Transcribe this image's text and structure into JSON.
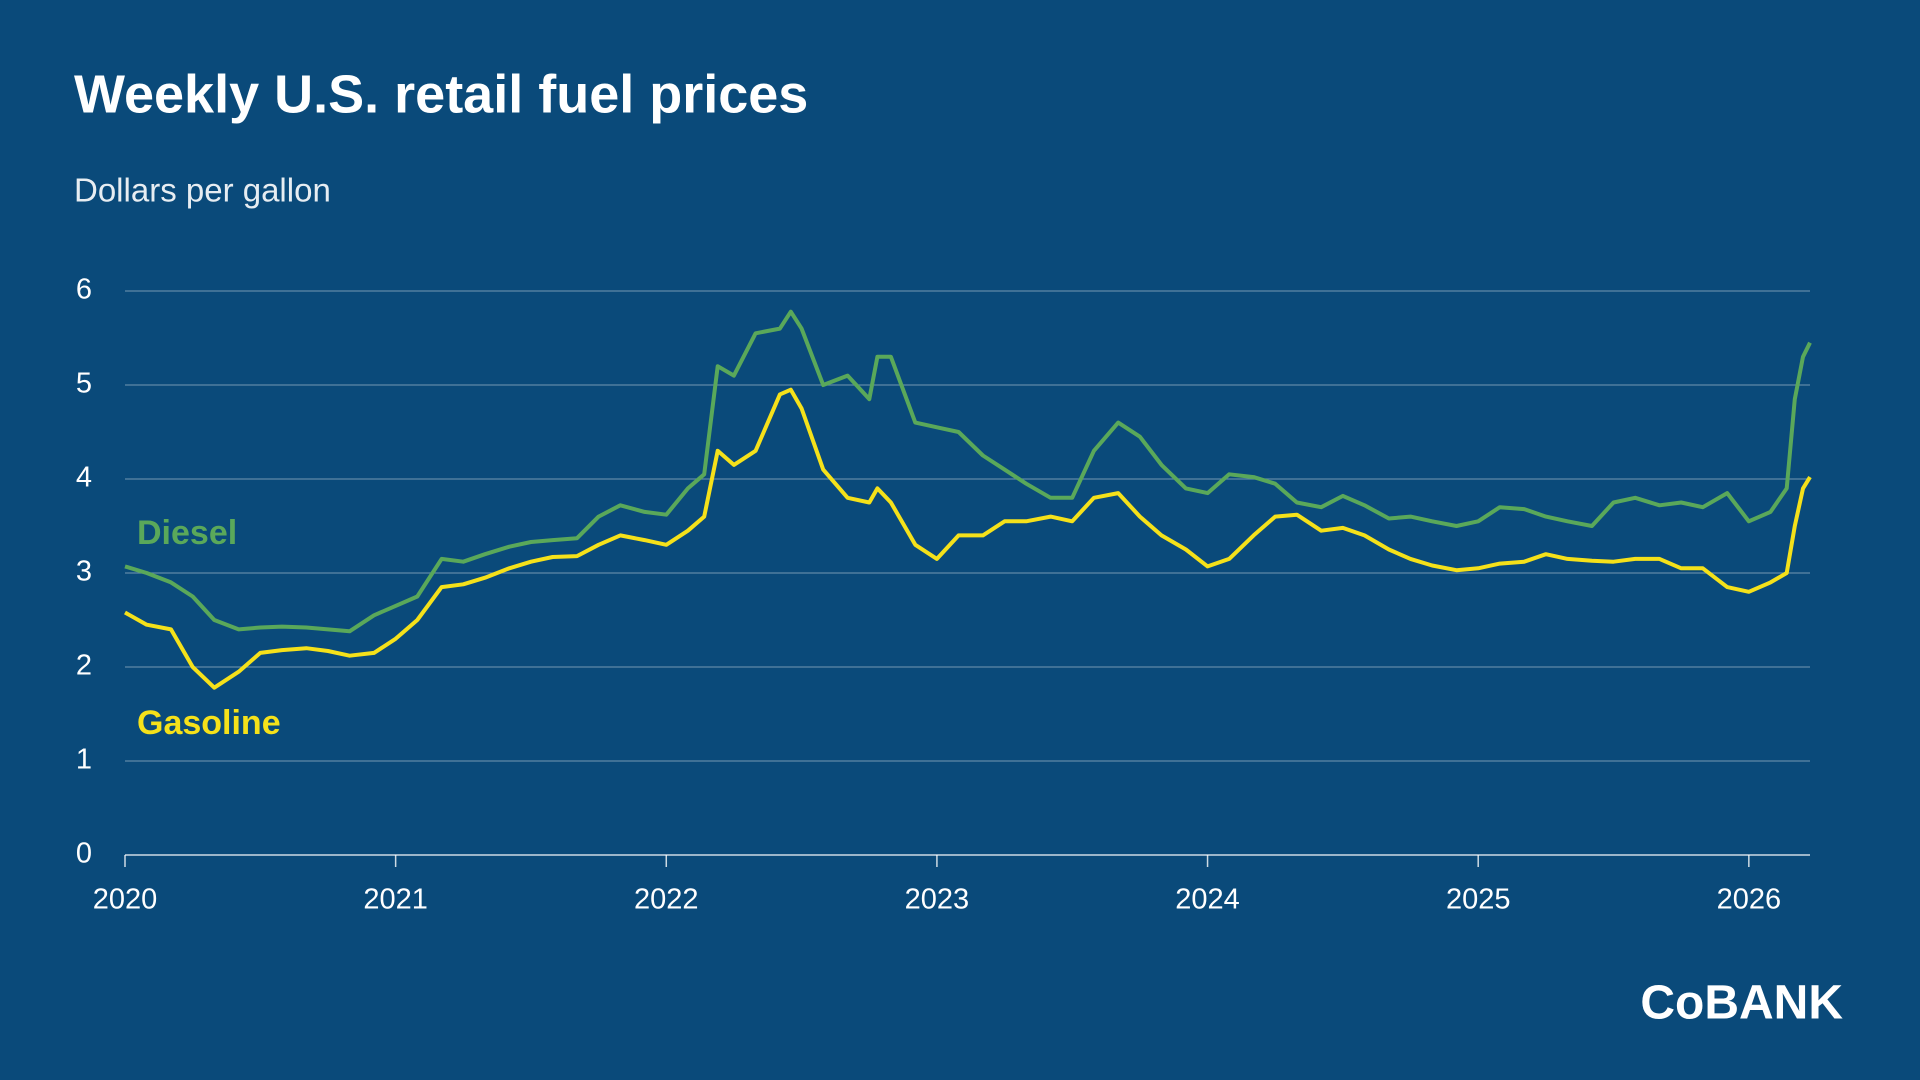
{
  "chart_data": {
    "type": "line",
    "title": "Weekly U.S. retail fuel prices",
    "subtitle": "Dollars per gallon",
    "x": [
      2020,
      2020.08,
      2020.17,
      2020.25,
      2020.33,
      2020.42,
      2020.5,
      2020.58,
      2020.67,
      2020.75,
      2020.83,
      2020.92,
      2021,
      2021.08,
      2021.17,
      2021.25,
      2021.33,
      2021.42,
      2021.5,
      2021.58,
      2021.67,
      2021.75,
      2021.83,
      2021.92,
      2022,
      2022.08,
      2022.14,
      2022.19,
      2022.25,
      2022.33,
      2022.42,
      2022.46,
      2022.5,
      2022.58,
      2022.67,
      2022.75,
      2022.78,
      2022.83,
      2022.92,
      2023,
      2023.08,
      2023.17,
      2023.25,
      2023.33,
      2023.42,
      2023.5,
      2023.58,
      2023.67,
      2023.75,
      2023.83,
      2023.92,
      2024,
      2024.08,
      2024.17,
      2024.25,
      2024.33,
      2024.42,
      2024.5,
      2024.58,
      2024.67,
      2024.75,
      2024.83,
      2024.92,
      2025,
      2025.08,
      2025.17,
      2025.25,
      2025.33,
      2025.42,
      2025.5,
      2025.58,
      2025.67,
      2025.75,
      2025.83,
      2025.92,
      2026,
      2026.08,
      2026.14,
      2026.17,
      2026.2,
      2026.226
    ],
    "series": [
      {
        "name": "Diesel",
        "color": "#5aa85a",
        "values": [
          3.07,
          3.0,
          2.9,
          2.75,
          2.5,
          2.4,
          2.42,
          2.43,
          2.42,
          2.4,
          2.38,
          2.55,
          2.65,
          2.75,
          3.15,
          3.12,
          3.2,
          3.28,
          3.33,
          3.35,
          3.37,
          3.6,
          3.72,
          3.65,
          3.62,
          3.9,
          4.05,
          5.2,
          5.1,
          5.55,
          5.6,
          5.78,
          5.6,
          5.0,
          5.1,
          4.85,
          5.3,
          5.3,
          4.6,
          4.55,
          4.5,
          4.25,
          4.1,
          3.95,
          3.8,
          3.8,
          4.3,
          4.6,
          4.45,
          4.15,
          3.9,
          3.85,
          4.05,
          4.02,
          3.95,
          3.75,
          3.7,
          3.82,
          3.72,
          3.58,
          3.6,
          3.55,
          3.5,
          3.55,
          3.7,
          3.68,
          3.6,
          3.55,
          3.5,
          3.75,
          3.8,
          3.72,
          3.75,
          3.7,
          3.85,
          3.55,
          3.65,
          3.9,
          4.85,
          5.3,
          5.45
        ]
      },
      {
        "name": "Gasoline",
        "color": "#f5e11a",
        "values": [
          2.58,
          2.45,
          2.4,
          2.0,
          1.78,
          1.95,
          2.15,
          2.18,
          2.2,
          2.17,
          2.12,
          2.15,
          2.3,
          2.5,
          2.85,
          2.88,
          2.95,
          3.05,
          3.12,
          3.17,
          3.18,
          3.3,
          3.4,
          3.35,
          3.3,
          3.45,
          3.6,
          4.3,
          4.15,
          4.3,
          4.9,
          4.95,
          4.75,
          4.1,
          3.8,
          3.75,
          3.9,
          3.75,
          3.3,
          3.15,
          3.4,
          3.4,
          3.55,
          3.55,
          3.6,
          3.55,
          3.8,
          3.85,
          3.6,
          3.4,
          3.25,
          3.07,
          3.15,
          3.4,
          3.6,
          3.62,
          3.45,
          3.48,
          3.4,
          3.25,
          3.15,
          3.08,
          3.03,
          3.05,
          3.1,
          3.12,
          3.2,
          3.15,
          3.13,
          3.12,
          3.15,
          3.15,
          3.05,
          3.05,
          2.85,
          2.8,
          2.9,
          3.0,
          3.5,
          3.9,
          4.02
        ]
      }
    ],
    "xlim": [
      2020,
      2026.226
    ],
    "xticks": [
      2020,
      2021,
      2022,
      2023,
      2024,
      2025,
      2026
    ],
    "ylim": [
      0,
      6
    ],
    "yticks": [
      0,
      1,
      2,
      3,
      4,
      5,
      6
    ],
    "grid": true
  },
  "logo": "CoBANK"
}
